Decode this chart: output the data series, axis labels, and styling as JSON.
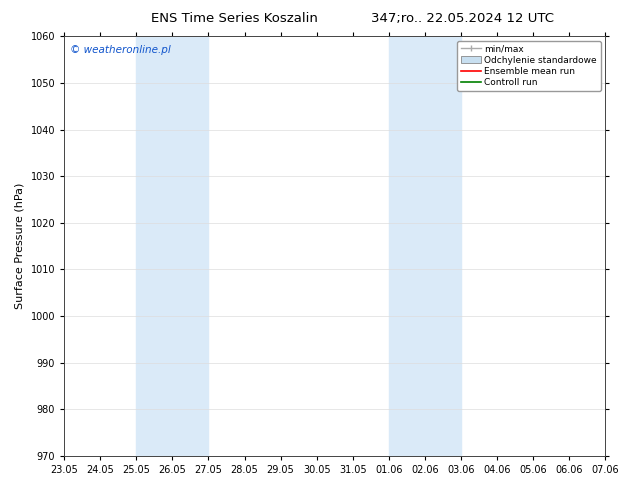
{
  "title_left": "ENS Time Series Koszalin",
  "title_right": "347;ro.. 22.05.2024 12 UTC",
  "ylabel": "Surface Pressure (hPa)",
  "ylim": [
    970,
    1060
  ],
  "yticks": [
    970,
    980,
    990,
    1000,
    1010,
    1020,
    1030,
    1040,
    1050,
    1060
  ],
  "xtick_labels": [
    "23.05",
    "24.05",
    "25.05",
    "26.05",
    "27.05",
    "28.05",
    "29.05",
    "30.05",
    "31.05",
    "01.06",
    "02.06",
    "03.06",
    "04.06",
    "05.06",
    "06.06",
    "07.06"
  ],
  "watermark": "© weatheronline.pl",
  "watermark_color": "#1155cc",
  "background_color": "#ffffff",
  "plot_bg_color": "#ffffff",
  "shaded_regions": [
    {
      "xstart": 2,
      "xend": 4,
      "color": "#daeaf8"
    },
    {
      "xstart": 9,
      "xend": 11,
      "color": "#daeaf8"
    }
  ],
  "legend_entries": [
    {
      "label": "min/max",
      "type": "errorbar",
      "color": "#aaaaaa"
    },
    {
      "label": "Odchylenie standardowe",
      "type": "band",
      "color": "#c8dff0"
    },
    {
      "label": "Ensemble mean run",
      "type": "line",
      "color": "#ff0000"
    },
    {
      "label": "Controll run",
      "type": "line",
      "color": "#008000"
    }
  ],
  "title_fontsize": 9.5,
  "tick_fontsize": 7,
  "ylabel_fontsize": 8,
  "watermark_fontsize": 7.5,
  "legend_fontsize": 6.5,
  "figsize": [
    6.34,
    4.9
  ],
  "dpi": 100
}
